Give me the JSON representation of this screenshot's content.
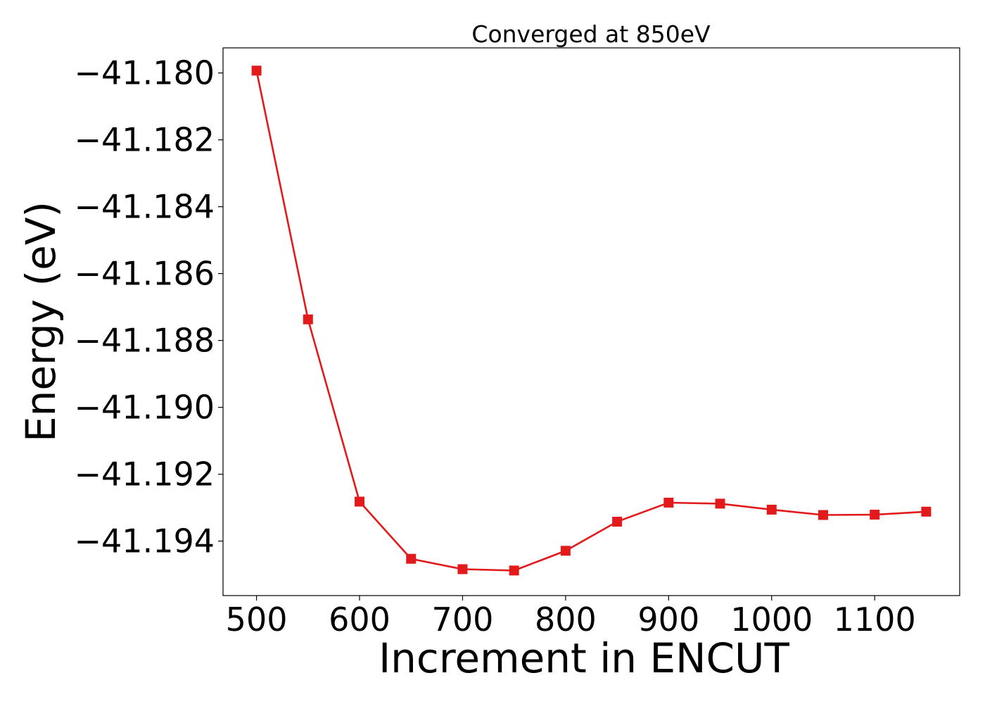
{
  "chart_data": {
    "type": "line",
    "title": "Converged at 850eV",
    "xlabel": "Increment in ENCUT",
    "ylabel": "Energy (eV)",
    "xlim": [
      467.5,
      1182.5
    ],
    "ylim": [
      -41.19563,
      -41.17925
    ],
    "grid": false,
    "x_ticks": [
      500,
      600,
      700,
      800,
      900,
      1000,
      1100
    ],
    "x_tick_labels": [
      "500",
      "600",
      "700",
      "800",
      "900",
      "1000",
      "1100"
    ],
    "y_ticks": [
      -41.18,
      -41.182,
      -41.184,
      -41.186,
      -41.188,
      -41.19,
      -41.192,
      -41.194
    ],
    "y_tick_labels": [
      "−41.180",
      "−41.182",
      "−41.184",
      "−41.186",
      "−41.188",
      "−41.190",
      "−41.192",
      "−41.194"
    ],
    "series": [
      {
        "color": "#e31a1c",
        "marker": "square",
        "x": [
          500,
          550,
          600,
          650,
          700,
          750,
          800,
          850,
          900,
          950,
          1000,
          1050,
          1100,
          1150
        ],
        "y": [
          -41.17993,
          -41.18737,
          -41.19282,
          -41.19453,
          -41.19484,
          -41.19488,
          -41.19429,
          -41.19342,
          -41.19285,
          -41.19288,
          -41.19306,
          -41.19322,
          -41.19321,
          -41.19312
        ]
      }
    ]
  }
}
